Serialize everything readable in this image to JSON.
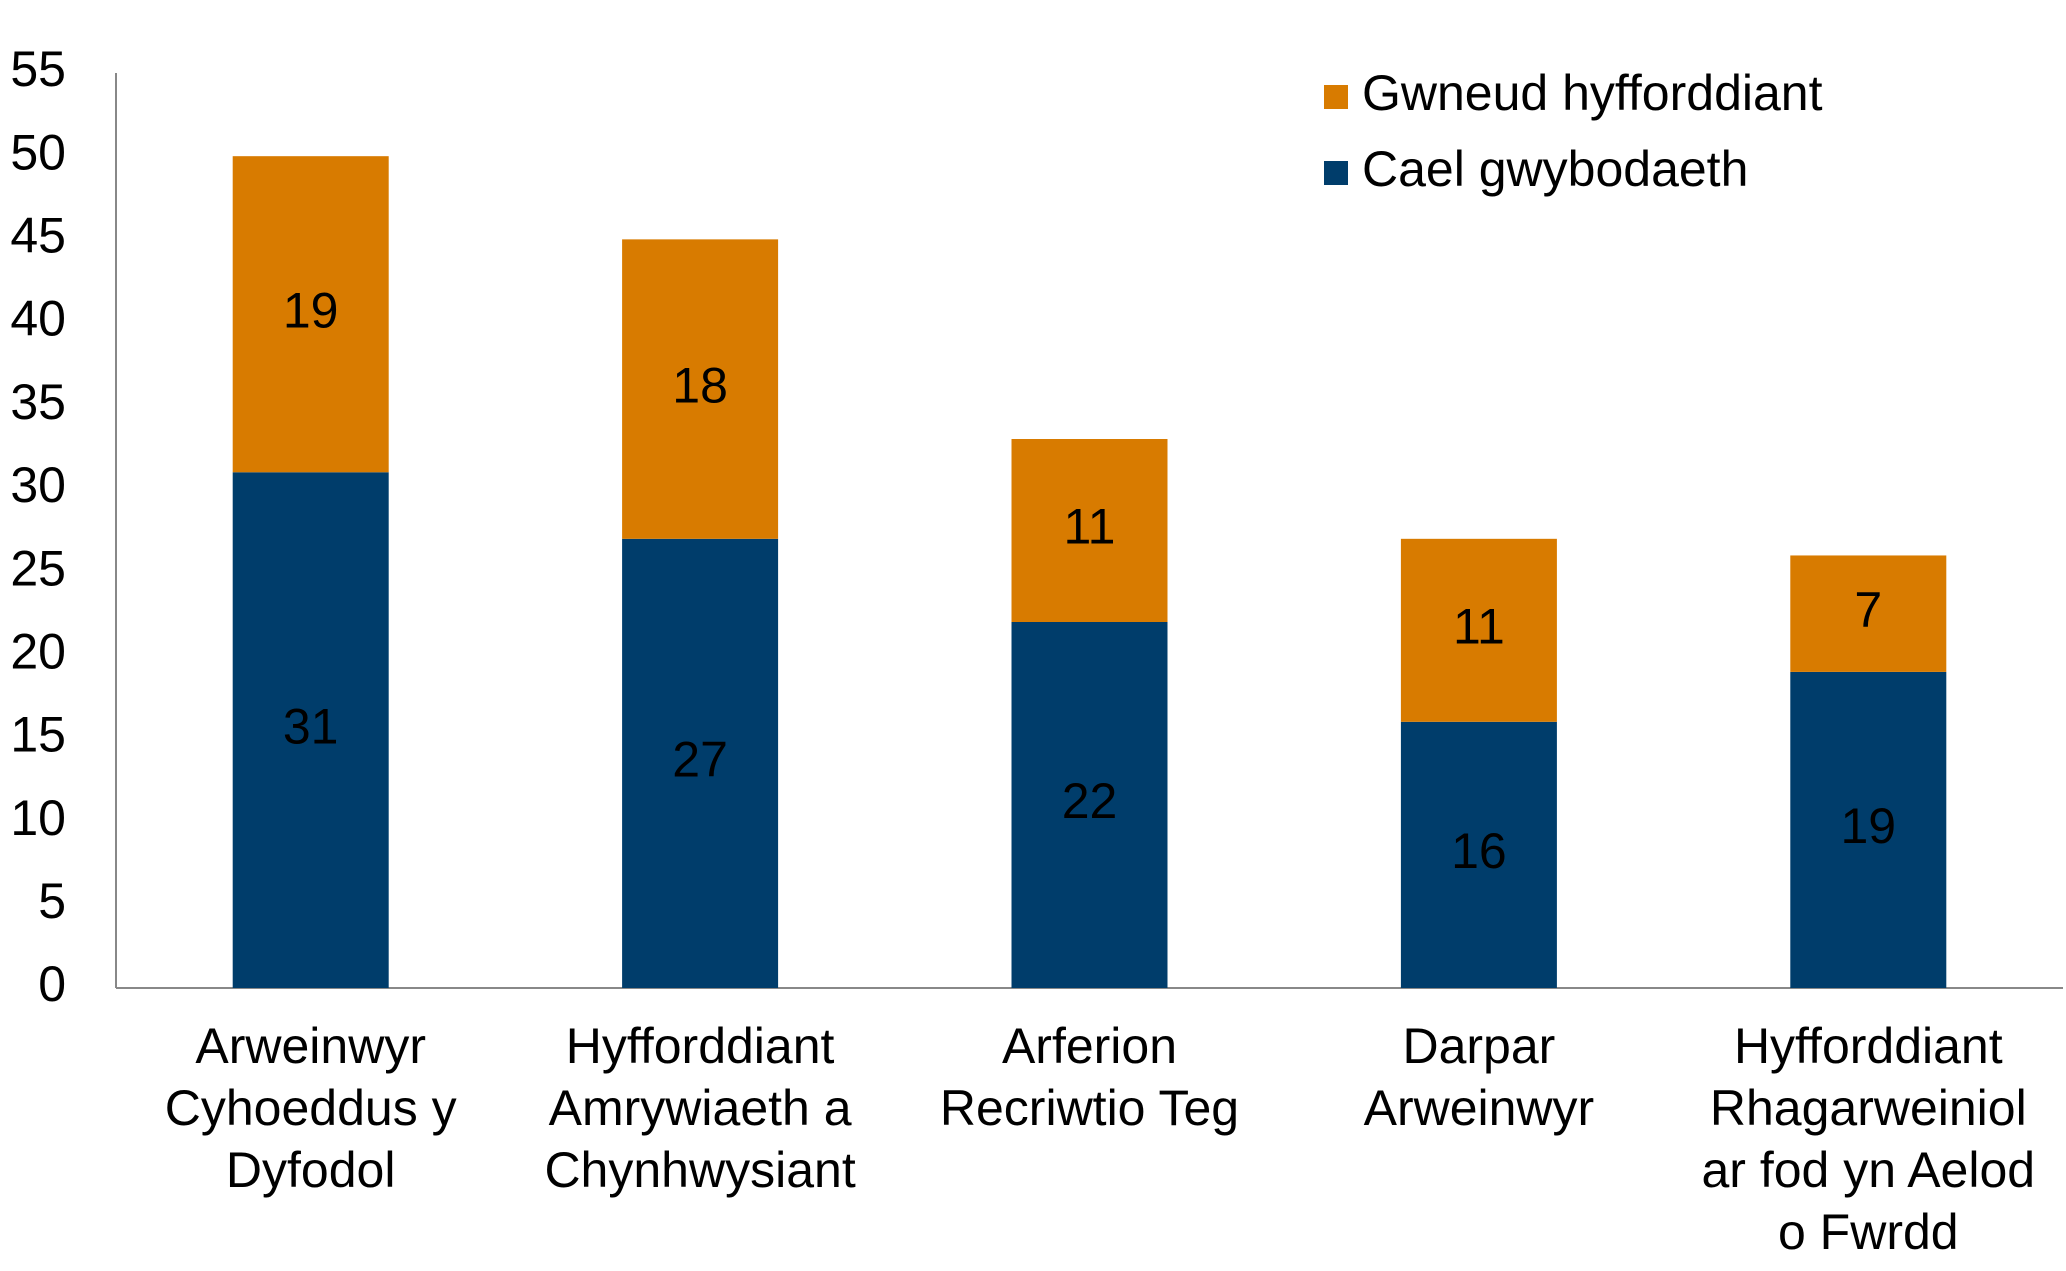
{
  "chart_data": {
    "type": "stacked_bar",
    "categories": [
      [
        "Arweinwyr",
        "Cyhoeddus y",
        "Dyfodol"
      ],
      [
        "Hyfforddiant",
        "Amrywiaeth a",
        "Chynhwysiant"
      ],
      [
        "Arferion",
        "Recriwtio Teg"
      ],
      [
        "Darpar",
        "Arweinwyr"
      ],
      [
        "Hyfforddiant",
        "Rhagarweiniol",
        "ar fod yn Aelod",
        "o Fwrdd"
      ]
    ],
    "series": [
      {
        "name": "Cael gwybodaeth",
        "color": "#003d6b",
        "values": [
          31,
          27,
          22,
          16,
          19
        ]
      },
      {
        "name": "Gwneud hyfforddiant",
        "color": "#d87b00",
        "values": [
          19,
          18,
          11,
          11,
          7
        ]
      }
    ],
    "ylim": [
      0,
      55
    ],
    "yticks": [
      0,
      5,
      10,
      15,
      20,
      25,
      30,
      35,
      40,
      45,
      50,
      55
    ],
    "grid": false
  }
}
